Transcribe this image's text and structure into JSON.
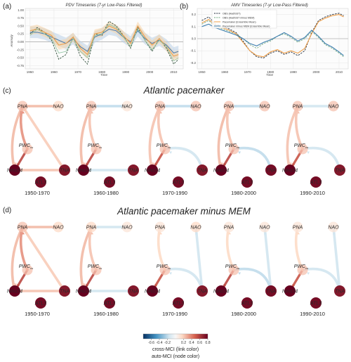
{
  "panel_a": {
    "letter": "(a)",
    "title": "PDV Timeseries (7-yr Low-Pass Filtered)",
    "xlabel": "Time",
    "ylabel": "Anomaly",
    "xticks": [
      "1950",
      "1960",
      "1970",
      "1980",
      "1990",
      "2000",
      "2010"
    ],
    "yticks": [
      "-0.75",
      "-0.50",
      "-0.25",
      "0.00",
      "0.25",
      "0.50",
      "0.75",
      "1.00"
    ],
    "colors": {
      "obs": "#2f4f3a",
      "ens": "#4f7fb0",
      "ens_band": "#b9cfe6",
      "pace": "#f0a04a",
      "pace_band": "#f7d3a6",
      "mem": "#8ec3a0"
    }
  },
  "panel_b": {
    "letter": "(b)",
    "title": "AMV Timeseries (7-yr Low-Pass Filtered)",
    "xlabel": "Time",
    "xticks": [
      "1950",
      "1960",
      "1970",
      "1980",
      "1990",
      "2000",
      "2010"
    ],
    "yticks": [
      "-0.2",
      "-0.1",
      "0.0",
      "0.1",
      "0.2"
    ],
    "legend": [
      "OBS (HadISST)",
      "OBS (HadISST minus MEM)",
      "Pacemaker (Ensemble Mean)",
      "Pacemaker minus MEM (Ensemble Mean)"
    ],
    "colors": {
      "obs": "#1f2a3a",
      "obs_mem": "#6aa57a",
      "pace": "#f0a04a",
      "pace_mem": "#3f7fb0"
    }
  },
  "panel_c": {
    "letter": "(c)",
    "title": "Atlantic pacemaker"
  },
  "panel_d": {
    "letter": "(d)",
    "title": "Atlantic pacemaker minus MEM"
  },
  "node_labels": {
    "pna": "PNA",
    "nao": "NAO",
    "pwc": "PWC",
    "pwc_sub": "cu",
    "nino": "Nino34",
    "tna": "TNA",
    "atl3": "ATL3"
  },
  "periods": [
    "1950-1970",
    "1960-1980",
    "1970-1990",
    "1980-2000",
    "1990-2010"
  ],
  "colorbar": {
    "ticks": [
      "-0.6",
      "-0.4",
      "-0.2",
      "0.2",
      "0.4",
      "0.6",
      "0.8"
    ],
    "label1": "cross-MCI (link color)",
    "label2": "auto-MCI (node color)"
  },
  "chart_data": [
    {
      "type": "line",
      "panel": "a",
      "title": "PDV Timeseries (7-yr Low-Pass Filtered)",
      "xlabel": "Time",
      "ylabel": "Anomaly",
      "xlim": [
        1948,
        2014
      ],
      "ylim": [
        -0.85,
        1.05
      ],
      "x": [
        1950,
        1953,
        1956,
        1959,
        1962,
        1965,
        1968,
        1971,
        1974,
        1977,
        1980,
        1983,
        1986,
        1989,
        1992,
        1995,
        1998,
        2001,
        2004,
        2007,
        2010,
        2012
      ],
      "series": [
        {
          "values": [
            0.25,
            0.45,
            0.3,
            0.05,
            -0.55,
            -0.4,
            0.15,
            -0.45,
            -0.7,
            0.25,
            0.2,
            0.65,
            0.5,
            0.2,
            -0.2,
            0.45,
            0.05,
            -0.3,
            0.1,
            -0.2,
            -0.7,
            -0.55
          ]
        },
        {
          "values": [
            0.3,
            0.3,
            0.25,
            0.15,
            0.05,
            -0.05,
            0.1,
            -0.15,
            -0.3,
            0.15,
            0.25,
            0.4,
            0.35,
            0.15,
            0.0,
            0.35,
            0.1,
            -0.05,
            0.05,
            -0.1,
            -0.35,
            -0.3
          ]
        },
        {
          "values": [
            0.35,
            0.4,
            0.3,
            0.2,
            -0.1,
            -0.05,
            0.15,
            -0.2,
            -0.4,
            0.25,
            0.3,
            0.5,
            0.4,
            0.2,
            -0.05,
            0.5,
            0.15,
            -0.1,
            0.1,
            -0.15,
            -0.45,
            -0.4
          ]
        },
        {
          "values": [
            0.2,
            0.4,
            0.25,
            0.1,
            -0.35,
            -0.3,
            0.1,
            -0.3,
            -0.5,
            0.2,
            0.25,
            0.55,
            0.45,
            0.15,
            -0.15,
            0.4,
            0.05,
            -0.25,
            0.05,
            -0.15,
            -0.6,
            -0.5
          ]
        }
      ]
    },
    {
      "type": "line",
      "panel": "b",
      "title": "AMV Timeseries (7-yr Low-Pass Filtered)",
      "xlabel": "Time",
      "xlim": [
        1948,
        2014
      ],
      "ylim": [
        -0.25,
        0.25
      ],
      "x": [
        1950,
        1953,
        1956,
        1959,
        1962,
        1965,
        1968,
        1971,
        1974,
        1977,
        1980,
        1983,
        1986,
        1989,
        1992,
        1995,
        1998,
        2001,
        2004,
        2007,
        2010,
        2012
      ],
      "series": [
        {
          "name": "OBS (HadISST)",
          "values": [
            0.15,
            0.18,
            0.12,
            0.1,
            0.08,
            0.05,
            -0.02,
            -0.1,
            -0.15,
            -0.16,
            -0.12,
            -0.1,
            -0.13,
            -0.11,
            -0.14,
            -0.1,
            0.05,
            0.15,
            0.18,
            0.2,
            0.21,
            0.19
          ]
        },
        {
          "name": "OBS (HadISST minus MEM)",
          "values": [
            0.12,
            0.15,
            0.1,
            0.08,
            0.06,
            0.04,
            0.0,
            -0.05,
            -0.08,
            -0.04,
            -0.02,
            0.02,
            0.04,
            0.01,
            -0.03,
            0.0,
            0.06,
            0.01,
            -0.05,
            -0.08,
            -0.12,
            -0.15
          ]
        },
        {
          "name": "Pacemaker (Ensemble Mean)",
          "values": [
            0.13,
            0.16,
            0.11,
            0.09,
            0.07,
            0.04,
            -0.03,
            -0.1,
            -0.14,
            -0.15,
            -0.11,
            -0.09,
            -0.12,
            -0.1,
            -0.12,
            -0.08,
            0.04,
            0.14,
            0.17,
            0.19,
            0.2,
            0.18
          ]
        },
        {
          "name": "Pacemaker minus MEM (Ensemble Mean)",
          "values": [
            0.1,
            0.12,
            0.09,
            0.07,
            0.05,
            0.03,
            0.0,
            -0.04,
            -0.06,
            -0.03,
            -0.01,
            0.02,
            0.05,
            0.02,
            -0.02,
            0.01,
            0.07,
            0.02,
            -0.04,
            -0.07,
            -0.11,
            -0.14
          ]
        }
      ]
    }
  ]
}
